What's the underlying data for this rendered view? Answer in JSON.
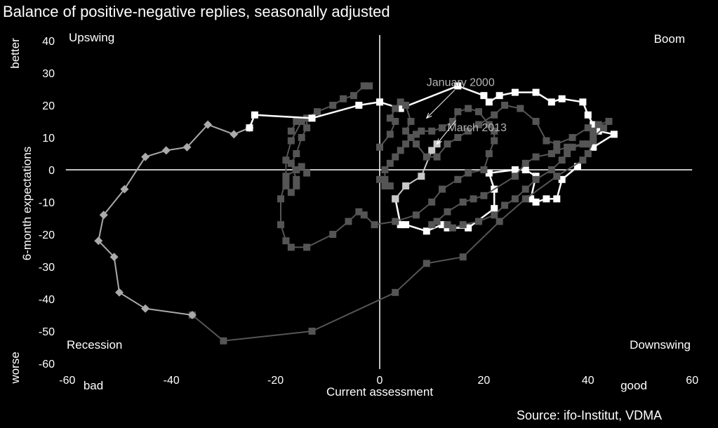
{
  "title": "Balance of positive-negative replies, seasonally adjusted",
  "source": "Source: ifo-Institut, VDMA",
  "chart_data": {
    "type": "scatter",
    "title": "Balance of positive-negative replies, seasonally adjusted",
    "xlabel": "Current assessment",
    "ylabel": "6-month expectations",
    "xlim": [
      -60,
      60
    ],
    "ylim": [
      -60,
      40
    ],
    "x_ticks": [
      -60,
      -40,
      -20,
      0,
      20,
      40,
      60
    ],
    "y_ticks": [
      40,
      30,
      20,
      10,
      0,
      -10,
      -20,
      -30,
      -40,
      -50,
      -60
    ],
    "x_end_labels": {
      "low": "bad",
      "high": "good"
    },
    "y_end_labels": {
      "high": "better",
      "low": "worse"
    },
    "quadrant_labels": {
      "top_left": "Upswing",
      "top_right": "Boom",
      "bottom_left": "Recession",
      "bottom_right": "Downswing"
    },
    "annotations": [
      {
        "text": "January 2000",
        "x": 9,
        "y": 26,
        "arrow_to": [
          9,
          16
        ]
      },
      {
        "text": "March 2013",
        "x": 13,
        "y": 12,
        "arrow_to": [
          11,
          8
        ]
      }
    ],
    "grid": false,
    "series": [
      {
        "color": "#ffffff",
        "marker": "square",
        "points": [
          [
            0,
            21
          ],
          [
            4,
            19
          ],
          [
            15,
            26
          ],
          [
            20,
            23
          ],
          [
            21,
            21
          ],
          [
            23,
            23
          ],
          [
            26,
            24
          ],
          [
            30,
            24
          ],
          [
            33,
            21
          ],
          [
            35,
            22
          ],
          [
            39,
            21
          ],
          [
            40,
            17
          ],
          [
            41,
            14
          ],
          [
            42,
            12
          ],
          [
            45,
            11
          ],
          [
            41,
            7
          ],
          [
            38,
            1
          ],
          [
            35,
            -3
          ],
          [
            34,
            -9
          ],
          [
            32,
            -9
          ],
          [
            30,
            -10
          ],
          [
            29,
            -9
          ],
          [
            30,
            -2
          ],
          [
            28,
            0
          ],
          [
            26,
            0
          ],
          [
            21,
            -1
          ],
          [
            22,
            -6
          ],
          [
            22,
            -12
          ],
          [
            17,
            -18
          ],
          [
            13,
            -18
          ],
          [
            12,
            -17
          ],
          [
            9,
            -19
          ],
          [
            5,
            -17
          ],
          [
            4,
            -17
          ],
          [
            3,
            -9
          ]
        ]
      },
      {
        "color": "#c8c8c8",
        "marker": "square",
        "points": [
          [
            3,
            -9
          ],
          [
            5,
            -5
          ],
          [
            8,
            -2
          ],
          [
            10,
            6
          ],
          [
            11,
            8
          ]
        ]
      },
      {
        "color": "#555555",
        "marker": "square",
        "points": [
          [
            -2,
            26
          ],
          [
            -3,
            26
          ],
          [
            -5,
            23
          ],
          [
            -7,
            22
          ],
          [
            -9,
            20
          ],
          [
            -12,
            18
          ],
          [
            -15,
            15
          ],
          [
            -17,
            9
          ],
          [
            -18,
            3
          ],
          [
            -18,
            -3
          ],
          [
            -19,
            -9
          ],
          [
            -19,
            -17
          ],
          [
            -18,
            -22
          ],
          [
            -17,
            -24
          ],
          [
            -14,
            -24
          ],
          [
            -9,
            -20
          ],
          [
            -6,
            -16
          ],
          [
            -4,
            -13
          ],
          [
            -3,
            -14
          ],
          [
            -1,
            -17
          ],
          [
            3,
            -16
          ],
          [
            7,
            -14
          ],
          [
            10,
            -10
          ],
          [
            12,
            -6
          ],
          [
            15,
            -3
          ],
          [
            17,
            -1
          ],
          [
            20,
            0
          ],
          [
            21,
            5
          ],
          [
            22,
            9
          ],
          [
            22,
            12
          ],
          [
            21,
            14
          ],
          [
            19,
            18
          ],
          [
            17,
            19
          ],
          [
            15,
            18
          ],
          [
            14,
            15
          ],
          [
            12,
            13
          ],
          [
            10,
            12
          ],
          [
            8,
            12
          ],
          [
            7,
            11
          ],
          [
            6,
            10
          ],
          [
            5,
            8
          ],
          [
            4,
            6
          ],
          [
            3,
            4
          ],
          [
            2,
            2
          ],
          [
            1,
            0
          ],
          [
            1,
            -3
          ],
          [
            2,
            -5
          ],
          [
            1,
            -5
          ],
          [
            0,
            -3
          ]
        ]
      },
      {
        "color": "#555555",
        "marker": "square",
        "points": [
          [
            0,
            7
          ],
          [
            2,
            11
          ],
          [
            3,
            15
          ],
          [
            2,
            16
          ],
          [
            3,
            19
          ],
          [
            4,
            21
          ],
          [
            5,
            20
          ],
          [
            6,
            15
          ],
          [
            5,
            12
          ],
          [
            7,
            8
          ],
          [
            9,
            4
          ],
          [
            11,
            4
          ],
          [
            13,
            8
          ],
          [
            15,
            10
          ],
          [
            17,
            12
          ],
          [
            19,
            14
          ],
          [
            22,
            17
          ],
          [
            24,
            20
          ],
          [
            27,
            19
          ],
          [
            30,
            15
          ],
          [
            32,
            9
          ],
          [
            34,
            8
          ],
          [
            37,
            10
          ],
          [
            40,
            13
          ],
          [
            41,
            12
          ],
          [
            42,
            14
          ],
          [
            44,
            15
          ],
          [
            43,
            13
          ],
          [
            41,
            10
          ],
          [
            40,
            8
          ],
          [
            37,
            7
          ],
          [
            36,
            5
          ],
          [
            35,
            3
          ],
          [
            33,
            0
          ],
          [
            30,
            -3
          ],
          [
            28,
            -6
          ],
          [
            26,
            -9
          ],
          [
            24,
            -11
          ],
          [
            22,
            -14
          ],
          [
            19,
            -16
          ],
          [
            16,
            -17
          ],
          [
            14,
            -18
          ],
          [
            13,
            -17
          ]
        ]
      },
      {
        "color": "#555555",
        "marker": "square",
        "points": [
          [
            -17,
            12
          ],
          [
            -16,
            15
          ],
          [
            -14,
            16
          ],
          [
            -14,
            13
          ],
          [
            -15,
            10
          ],
          [
            -16,
            5
          ],
          [
            -17,
            2
          ],
          [
            -16,
            -3
          ],
          [
            -16,
            -5
          ],
          [
            -17,
            -7
          ],
          [
            -18,
            -5
          ],
          [
            -18,
            -2
          ],
          [
            -16,
            0
          ],
          [
            -15,
            1
          ],
          [
            -14,
            -1
          ]
        ]
      },
      {
        "color": "#555555",
        "marker": "square",
        "points": [
          [
            -36,
            -45
          ],
          [
            -30,
            -53
          ],
          [
            -13,
            -50
          ],
          [
            3,
            -38
          ],
          [
            9,
            -29
          ],
          [
            16,
            -27
          ],
          [
            23,
            -16
          ],
          [
            28,
            -9
          ],
          [
            34,
            -2
          ],
          [
            39,
            3
          ],
          [
            40,
            5
          ],
          [
            41,
            9
          ],
          [
            39,
            8
          ],
          [
            36,
            7
          ],
          [
            34,
            6
          ],
          [
            33,
            5
          ],
          [
            30,
            4
          ],
          [
            28,
            2
          ],
          [
            26,
            -2
          ],
          [
            20,
            -8
          ],
          [
            18,
            -9
          ],
          [
            16,
            -10
          ],
          [
            13,
            -13
          ],
          [
            11,
            -16
          ],
          [
            10,
            -17
          ]
        ]
      },
      {
        "color": "#aaaaaa",
        "marker": "diamond",
        "points": [
          [
            -25,
            13
          ],
          [
            -28,
            11
          ],
          [
            -33,
            14
          ],
          [
            -37,
            7
          ],
          [
            -41,
            6
          ],
          [
            -45,
            4
          ],
          [
            -49,
            -6
          ],
          [
            -53,
            -14
          ],
          [
            -54,
            -22
          ],
          [
            -51,
            -27
          ],
          [
            -50,
            -38
          ],
          [
            -45,
            -43
          ],
          [
            -36,
            -45
          ]
        ]
      },
      {
        "color": "#ffffff",
        "marker": "square",
        "points": [
          [
            -25,
            13
          ],
          [
            -24,
            17
          ],
          [
            -13,
            16
          ],
          [
            -4,
            20
          ],
          [
            0,
            21
          ]
        ]
      }
    ]
  }
}
